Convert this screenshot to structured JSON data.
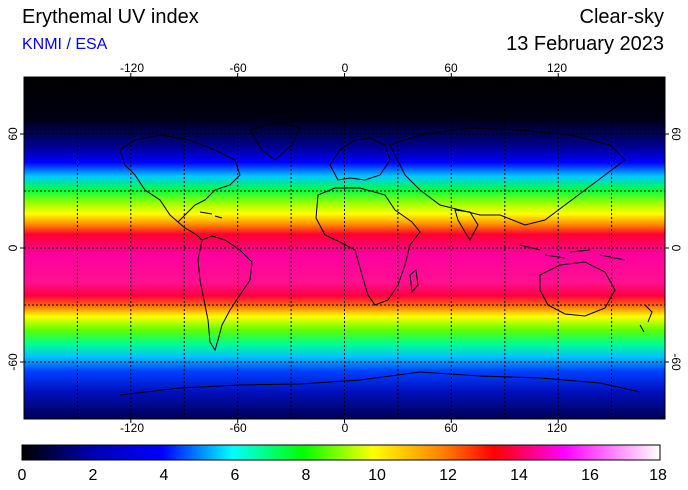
{
  "header": {
    "title": "Erythemal UV index",
    "source": "KNMI / ESA",
    "condition": "Clear-sky",
    "date": "13 February 2023"
  },
  "map": {
    "projection": "equirectangular",
    "lon_ticks": [
      "-120",
      "-60",
      "0",
      "60",
      "120"
    ],
    "lat_ticks": [
      "60",
      "0",
      "-60"
    ],
    "grid": "dotted every 30 degrees",
    "field": "erythemal UV index, clear-sky"
  },
  "colorbar": {
    "labels": [
      "0",
      "2",
      "4",
      "6",
      "8",
      "10",
      "12",
      "14",
      "16",
      "18"
    ],
    "stops": [
      "#000000",
      "#0000ff",
      "#00ffff",
      "#00ff00",
      "#ffff00",
      "#ff0000",
      "#ff00ff",
      "#ffffff"
    ]
  }
}
